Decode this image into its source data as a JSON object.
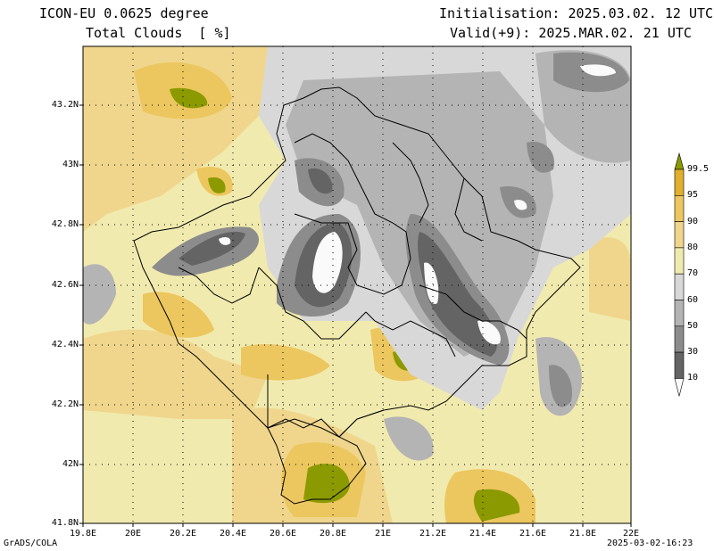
{
  "header": {
    "model": "ICON-EU 0.0625 degree",
    "variable": "Total Clouds  [ %]",
    "init": "Initialisation: 2025.03.02. 12 UTC",
    "valid": "Valid(+9): 2025.MAR.02. 21 UTC"
  },
  "footer": {
    "left": "GrADS/COLA",
    "right": "2025-03-02-16:23"
  },
  "axes": {
    "lon_ticks": [
      "19.8E",
      "20E",
      "20.2E",
      "20.4E",
      "20.6E",
      "20.8E",
      "21E",
      "21.2E",
      "21.4E",
      "21.6E",
      "21.8E",
      "22E"
    ],
    "lat_ticks": [
      "43.2N",
      "43N",
      "42.8N",
      "42.6N",
      "42.4N",
      "42.2N",
      "42N",
      "41.8N"
    ]
  },
  "colorbar": {
    "levels": [
      "99.5",
      "95",
      "90",
      "80",
      "70",
      "60",
      "50",
      "30",
      "10"
    ],
    "colors": [
      "#8b9a00",
      "#e2ae2e",
      "#ecc65e",
      "#efd68c",
      "#f1eaae",
      "#d8d8d8",
      "#b4b4b4",
      "#8c8c8c",
      "#646464",
      "#fafafa"
    ]
  }
}
